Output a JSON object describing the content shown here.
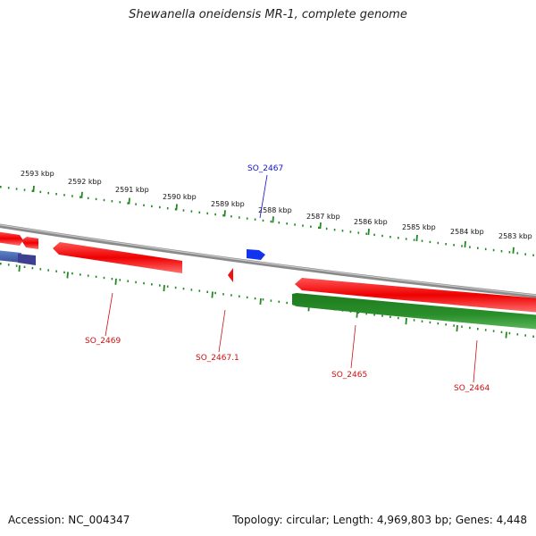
{
  "title": "Shewanella oneidensis MR-1, complete genome",
  "footer": {
    "accession": "Accession: NC_004347",
    "summary": "Topology: circular; Length: 4,969,803 bp; Genes: 4,448"
  },
  "scale_labels": [
    "2593 kbp",
    "2592 kbp",
    "2591 kbp",
    "2590 kbp",
    "2589 kbp",
    "2588 kbp",
    "2587 kbp",
    "2586 kbp",
    "2585 kbp",
    "2584 kbp",
    "2583 kbp"
  ],
  "gene_labels": {
    "so_2467": "SO_2467",
    "so_2469": "SO_2469",
    "so_2467_1": "SO_2467.1",
    "so_2465": "SO_2465",
    "so_2464": "SO_2464"
  },
  "colors": {
    "backbone": "#8a8a8a",
    "forward_gene": "#ee1111",
    "reverse_gene": "#228822",
    "highlight_gene": "#1122ee",
    "tick": "#228822",
    "label_blue": "#1111cc",
    "label_red": "#cc1111"
  }
}
